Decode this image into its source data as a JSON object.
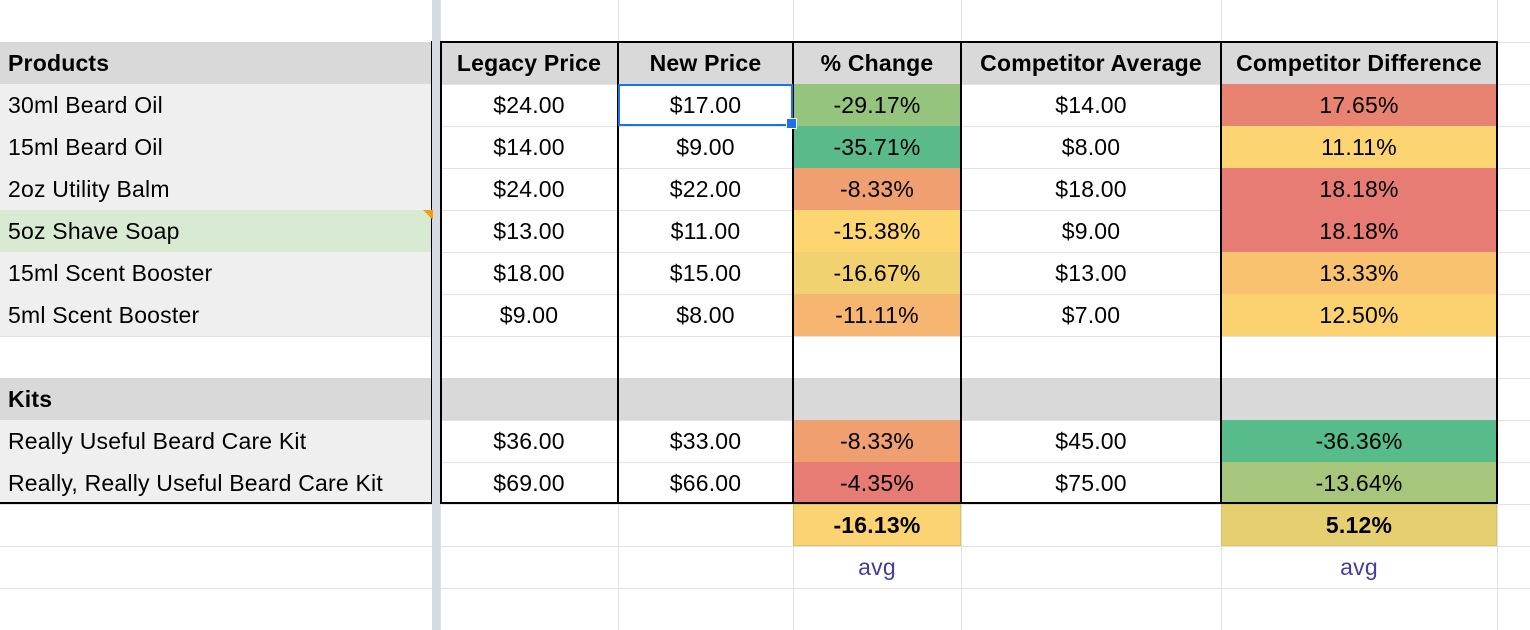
{
  "colors": {
    "header_fill": "#d9d9d9",
    "row_fill": "#efefef",
    "selected_row_fill": "#d9ead3",
    "selection_border": "#1a73e8",
    "note_marker": "#f29c11",
    "avg_text": "#3f3f9e"
  },
  "headers": {
    "products": "Products",
    "legacy_price": "Legacy Price",
    "new_price": "New Price",
    "pct_change": "% Change",
    "competitor_average": "Competitor Average",
    "competitor_difference": "Competitor Difference"
  },
  "products": [
    {
      "name": "30ml Beard Oil",
      "legacy": "$24.00",
      "new": "$17.00",
      "change": "-29.17%",
      "change_color": "#94c47d",
      "comp_avg": "$14.00",
      "comp_diff": "17.65%",
      "diff_color": "#e88372"
    },
    {
      "name": "15ml Beard Oil",
      "legacy": "$14.00",
      "new": "$9.00",
      "change": "-35.71%",
      "change_color": "#5bba8a",
      "comp_avg": "$8.00",
      "comp_diff": "11.11%",
      "diff_color": "#fcd572"
    },
    {
      "name": "2oz Utility Balm",
      "legacy": "$24.00",
      "new": "$22.00",
      "change": "-8.33%",
      "change_color": "#f0a070",
      "comp_avg": "$18.00",
      "comp_diff": "18.18%",
      "diff_color": "#e67c73"
    },
    {
      "name": "5oz Shave Soap",
      "legacy": "$13.00",
      "new": "$11.00",
      "change": "-15.38%",
      "change_color": "#fdd672",
      "comp_avg": "$9.00",
      "comp_diff": "18.18%",
      "diff_color": "#e67c73"
    },
    {
      "name": "15ml Scent Booster",
      "legacy": "$18.00",
      "new": "$15.00",
      "change": "-16.67%",
      "change_color": "#f2d170",
      "comp_avg": "$13.00",
      "comp_diff": "13.33%",
      "diff_color": "#f9c26f"
    },
    {
      "name": "5ml Scent Booster",
      "legacy": "$9.00",
      "new": "$8.00",
      "change": "-11.11%",
      "change_color": "#f6b571",
      "comp_avg": "$7.00",
      "comp_diff": "12.50%",
      "diff_color": "#fcd271"
    }
  ],
  "kits_label": "Kits",
  "kits": [
    {
      "name": "Really Useful Beard Care Kit",
      "legacy": "$36.00",
      "new": "$33.00",
      "change": "-8.33%",
      "change_color": "#f0a070",
      "comp_avg": "$45.00",
      "comp_diff": "-36.36%",
      "diff_color": "#57bb8a"
    },
    {
      "name": "Really, Really Useful Beard Care Kit",
      "legacy": "$69.00",
      "new": "$66.00",
      "change": "-4.35%",
      "change_color": "#e67c73",
      "comp_avg": "$75.00",
      "comp_diff": "-13.64%",
      "diff_color": "#a7c67b"
    }
  ],
  "summary": {
    "avg_change": "-16.13%",
    "avg_change_color": "#fbd373",
    "avg_diff": "5.12%",
    "avg_diff_color": "#e5cf70",
    "avg_label": "avg"
  },
  "selected_cell": {
    "row": 0,
    "column": "new_price"
  }
}
